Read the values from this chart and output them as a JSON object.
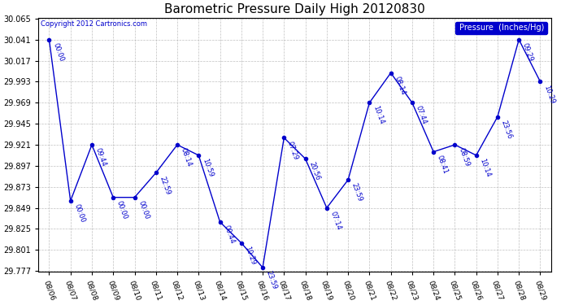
{
  "title": "Barometric Pressure Daily High 20120830",
  "copyright_text": "Copyright 2012 Cartronics.com",
  "legend_label": "Pressure  (Inches/Hg)",
  "background_color": "#ffffff",
  "plot_bg_color": "#ffffff",
  "line_color": "#0000cc",
  "grid_color": "#b0b0b0",
  "text_color": "#0000cc",
  "ylim": [
    29.777,
    30.065
  ],
  "yticks": [
    29.777,
    29.801,
    29.825,
    29.849,
    29.873,
    29.897,
    29.921,
    29.945,
    29.969,
    29.993,
    30.017,
    30.041,
    30.065
  ],
  "dates": [
    "08/06",
    "08/07",
    "08/08",
    "08/09",
    "08/10",
    "08/11",
    "08/12",
    "08/13",
    "08/14",
    "08/15",
    "08/16",
    "08/17",
    "08/18",
    "08/19",
    "08/20",
    "08/21",
    "08/22",
    "08/23",
    "08/24",
    "08/25",
    "08/26",
    "08/27",
    "08/28",
    "08/29"
  ],
  "values": [
    30.041,
    29.857,
    29.921,
    29.861,
    29.861,
    29.889,
    29.921,
    29.909,
    29.833,
    29.809,
    29.781,
    29.929,
    29.905,
    29.849,
    29.881,
    29.969,
    30.003,
    29.969,
    29.913,
    29.921,
    29.909,
    29.953,
    30.041,
    29.993
  ],
  "time_labels": [
    "00:00",
    "00:00",
    "09:44",
    "00:00",
    "00:00",
    "22:59",
    "08:14",
    "10:59",
    "00:44",
    "10:29",
    "23:59",
    "07:29",
    "20:56",
    "07:14",
    "23:59",
    "10:14",
    "08:14",
    "07:44",
    "08:41",
    "08:59",
    "10:14",
    "23:56",
    "09:29",
    "10:29"
  ],
  "marker_size": 3,
  "line_width": 1.0,
  "label_fontsize": 6,
  "title_fontsize": 11,
  "fig_width": 6.9,
  "fig_height": 3.75,
  "dpi": 100
}
